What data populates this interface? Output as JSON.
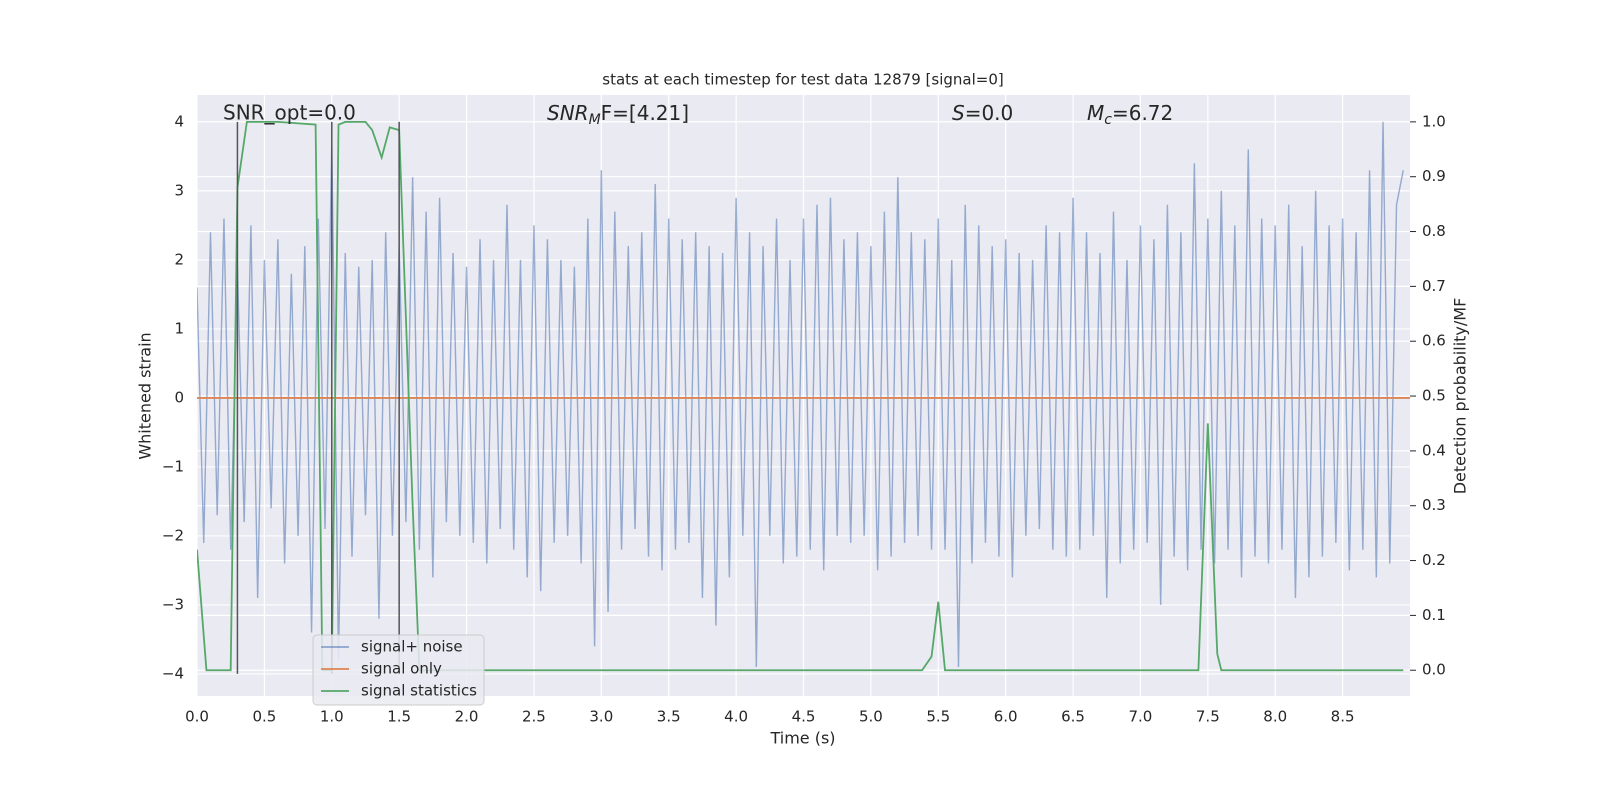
{
  "chart_data": {
    "type": "line",
    "title": "stats at each timestep for test data 12879 [signal=0]",
    "xlabel": "Time (s)",
    "ylabel": "Whitened strain",
    "y2label": "Detection probability/MF",
    "annotations": [
      "SNR_opt=0.0",
      {
        "main": "SNR",
        "sub": "M",
        "rest": "F=[4.21]"
      },
      {
        "main": "S",
        "rest": "=0.0"
      },
      {
        "main": "M",
        "sub": "c",
        "rest": "=6.72"
      }
    ],
    "xlim": [
      0,
      9.0
    ],
    "ylim": [
      -4.32,
      4.39
    ],
    "y2lim": [
      -0.047,
      1.049
    ],
    "xticks": [
      {
        "value": 0,
        "label": "0.0"
      },
      0.5,
      {
        "value": 1,
        "label": "1.0"
      },
      1.5,
      {
        "value": 2,
        "label": "2.0"
      },
      2.5,
      {
        "value": 3,
        "label": "3.0"
      },
      3.5,
      {
        "value": 4,
        "label": "4.0"
      },
      4.5,
      {
        "value": 5,
        "label": "5.0"
      },
      5.5,
      {
        "value": 6,
        "label": "6.0"
      },
      6.5,
      {
        "value": 7,
        "label": "7.0"
      },
      7.5,
      {
        "value": 8,
        "label": "8.0"
      },
      8.5
    ],
    "yticks": [
      {
        "value": -4,
        "label": "−4"
      },
      {
        "value": -3,
        "label": "−3"
      },
      {
        "value": -2,
        "label": "−2"
      },
      {
        "value": -1,
        "label": "−1"
      },
      0,
      1,
      2,
      3,
      4
    ],
    "y2ticks": [
      {
        "value": 0,
        "label": "0.0"
      },
      0.1,
      0.2,
      0.3,
      0.4,
      0.5,
      0.6,
      0.7,
      0.8,
      0.9,
      {
        "value": 1,
        "label": "1.0"
      }
    ],
    "grid": true,
    "legend": "lower left",
    "vlines": [
      0.3,
      1.0,
      1.5
    ],
    "vline_color": "#555555",
    "series": [
      {
        "name": "signal+ noise",
        "color": "#4c72b0",
        "x": [
          0,
          0.05,
          0.1,
          0.15,
          0.2,
          0.25,
          0.3,
          0.35,
          0.4,
          0.45,
          0.5,
          0.55,
          0.6,
          0.65,
          0.7,
          0.75,
          0.8,
          0.85,
          0.9,
          0.95,
          1,
          1.05,
          1.1,
          1.15,
          1.2,
          1.25,
          1.3,
          1.35,
          1.4,
          1.45,
          1.5,
          1.55,
          1.6,
          1.65,
          1.7,
          1.75,
          1.8,
          1.85,
          1.9,
          1.95,
          2,
          2.05,
          2.1,
          2.15,
          2.2,
          2.25,
          2.3,
          2.35,
          2.4,
          2.45,
          2.5,
          2.55,
          2.6,
          2.65,
          2.7,
          2.75,
          2.8,
          2.85,
          2.9,
          2.95,
          3,
          3.05,
          3.1,
          3.15,
          3.2,
          3.25,
          3.3,
          3.35,
          3.4,
          3.45,
          3.5,
          3.55,
          3.6,
          3.65,
          3.7,
          3.75,
          3.8,
          3.85,
          3.9,
          3.95,
          4,
          4.05,
          4.1,
          4.15,
          4.2,
          4.25,
          4.3,
          4.35,
          4.4,
          4.45,
          4.5,
          4.55,
          4.6,
          4.65,
          4.7,
          4.75,
          4.8,
          4.85,
          4.9,
          4.95,
          5,
          5.05,
          5.1,
          5.15,
          5.2,
          5.25,
          5.3,
          5.35,
          5.4,
          5.45,
          5.5,
          5.55,
          5.6,
          5.65,
          5.7,
          5.75,
          5.8,
          5.85,
          5.9,
          5.95,
          6,
          6.05,
          6.1,
          6.15,
          6.2,
          6.25,
          6.3,
          6.35,
          6.4,
          6.45,
          6.5,
          6.55,
          6.6,
          6.65,
          6.7,
          6.75,
          6.8,
          6.85,
          6.9,
          6.95,
          7,
          7.05,
          7.1,
          7.15,
          7.2,
          7.25,
          7.3,
          7.35,
          7.4,
          7.45,
          7.5,
          7.55,
          7.6,
          7.65,
          7.7,
          7.75,
          7.8,
          7.85,
          7.9,
          7.95,
          8,
          8.05,
          8.1,
          8.15,
          8.2,
          8.25,
          8.3,
          8.35,
          8.4,
          8.45,
          8.5,
          8.55,
          8.6,
          8.65,
          8.7,
          8.75,
          8.8,
          8.85,
          8.9,
          8.95
        ],
        "values": [
          1.6,
          -2.1,
          2.4,
          -1.7,
          2.6,
          -2.2,
          1.9,
          -1.8,
          2.5,
          -2.9,
          2.0,
          -1.6,
          2.3,
          -2.4,
          1.8,
          -2.0,
          2.2,
          -3.4,
          2.6,
          -1.9,
          3.7,
          -3.8,
          2.1,
          -2.3,
          1.9,
          -1.7,
          2.0,
          -3.2,
          2.4,
          -2.0,
          2.2,
          -1.8,
          3.2,
          -2.2,
          2.7,
          -2.6,
          2.9,
          -1.8,
          2.1,
          -2.0,
          1.9,
          -2.1,
          2.3,
          -2.4,
          2.0,
          -1.9,
          2.8,
          -2.2,
          2.0,
          -2.6,
          2.5,
          -2.8,
          2.3,
          -2.1,
          2.0,
          -2.0,
          1.9,
          -2.4,
          2.6,
          -3.6,
          3.3,
          -3.1,
          2.7,
          -2.2,
          2.2,
          -1.9,
          2.4,
          -2.3,
          3.1,
          -2.5,
          2.6,
          -2.2,
          2.3,
          -2.1,
          2.4,
          -2.9,
          2.2,
          -3.3,
          2.1,
          -2.6,
          2.9,
          -2.0,
          2.4,
          -3.9,
          2.2,
          -2.0,
          2.6,
          -2.4,
          2.0,
          -2.3,
          2.6,
          -2.2,
          2.8,
          -2.5,
          2.9,
          -2.0,
          2.3,
          -2.1,
          2.4,
          -2.0,
          2.2,
          -2.5,
          2.7,
          -2.3,
          3.2,
          -2.1,
          2.4,
          -2.0,
          2.3,
          -2.2,
          2.6,
          -2.2,
          2.0,
          -3.9,
          2.8,
          -2.4,
          2.5,
          -2.1,
          2.2,
          -2.3,
          2.3,
          -2.6,
          2.1,
          -2.0,
          2.0,
          -1.9,
          2.5,
          -2.2,
          2.4,
          -2.3,
          2.9,
          -2.2,
          2.4,
          -2.0,
          2.1,
          -2.9,
          2.7,
          -2.4,
          2.0,
          -2.2,
          2.5,
          -2.1,
          2.3,
          -3.0,
          2.8,
          -2.3,
          2.4,
          -2.5,
          3.4,
          -2.2,
          2.6,
          -2.4,
          3.0,
          -2.2,
          2.5,
          -2.6,
          3.6,
          -2.3,
          2.6,
          -2.4,
          2.5,
          -2.2,
          2.8,
          -2.9,
          2.2,
          -2.6,
          3.0,
          -2.3,
          2.5,
          -2.1,
          2.6,
          -2.5,
          2.4,
          -2.2,
          3.3,
          -2.6,
          4.0,
          -2.4,
          2.8,
          3.3
        ]
      },
      {
        "name": "signal only",
        "color": "#dd8452",
        "x": [
          0,
          9.0
        ],
        "values": [
          0,
          0
        ]
      },
      {
        "name": "signal statistics",
        "color": "#55a868",
        "axis": "y2",
        "x": [
          0,
          0.07,
          0.25,
          0.3,
          0.37,
          0.6,
          0.88,
          0.93,
          1.0,
          1.05,
          1.1,
          1.25,
          1.3,
          1.37,
          1.43,
          1.5,
          1.6,
          1.65,
          5.38,
          5.45,
          5.5,
          5.55,
          7.43,
          7.5,
          7.57,
          7.6,
          8.95
        ],
        "values": [
          0.22,
          0.0,
          0.0,
          0.88,
          1.0,
          1.0,
          0.995,
          0.0,
          0.0,
          0.995,
          1.0,
          1.0,
          0.985,
          0.935,
          0.99,
          0.985,
          0.3,
          0.0,
          0.0,
          0.025,
          0.125,
          0.0,
          0.0,
          0.45,
          0.03,
          0.0,
          0.0
        ]
      }
    ]
  }
}
